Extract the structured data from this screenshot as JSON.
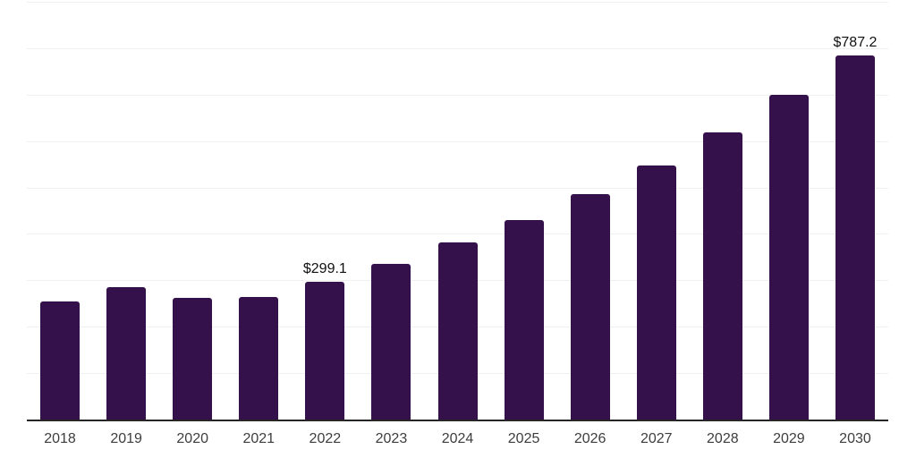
{
  "chart_data": {
    "type": "bar",
    "title": "",
    "xlabel": "",
    "ylabel": "",
    "categories": [
      "2018",
      "2019",
      "2020",
      "2021",
      "2022",
      "2023",
      "2024",
      "2025",
      "2026",
      "2027",
      "2028",
      "2029",
      "2030"
    ],
    "values": [
      256,
      288,
      264,
      266,
      299.1,
      338,
      384,
      431,
      488,
      550,
      620,
      701,
      787.2
    ],
    "bar_labels": [
      "",
      "",
      "",
      "",
      "$299.1",
      "",
      "",
      "",
      "",
      "",
      "",
      "",
      "$787.2"
    ],
    "labeled_points": [
      {
        "category": "2022",
        "label": "$299.1",
        "value": 299.1
      },
      {
        "category": "2030",
        "label": "$787.2",
        "value": 787.2
      }
    ],
    "ylim": [
      0,
      900
    ],
    "gridline_step": 100,
    "grid": true,
    "legend": "none",
    "colors": {
      "bar": "#35114B",
      "gridline": "#f0f0f0",
      "axis_line": "#262626",
      "tick_label": "#3d3d3d",
      "value_label": "#111111",
      "background": "#ffffff"
    }
  }
}
